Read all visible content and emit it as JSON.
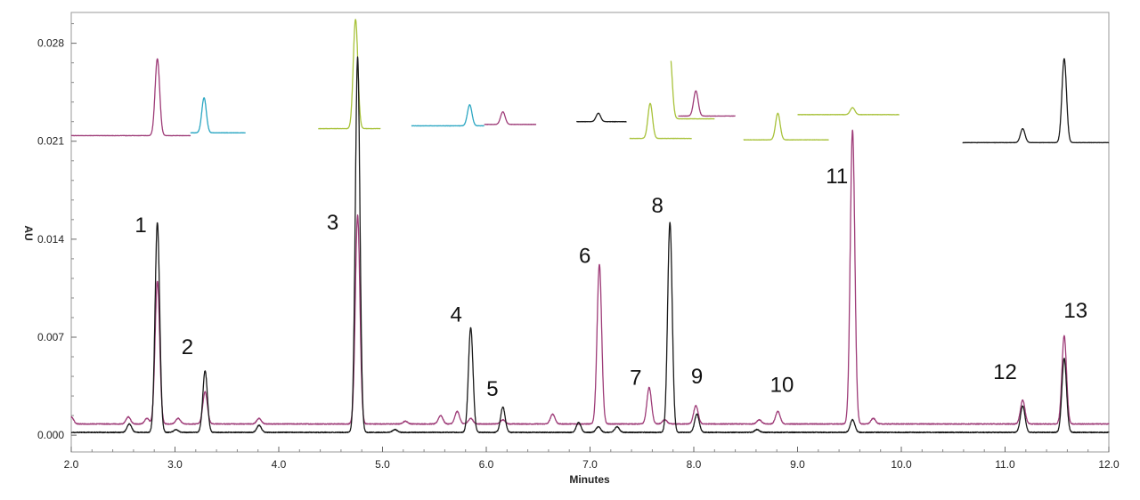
{
  "chart_data": {
    "type": "line",
    "title": "",
    "xlabel": "Minutes",
    "ylabel": "AU",
    "xlim": [
      2.0,
      12.0
    ],
    "ylim": [
      -0.0012,
      0.0302
    ],
    "x_ticks": [
      "2.0",
      "3.0",
      "4.0",
      "5.0",
      "6.0",
      "7.0",
      "8.0",
      "9.0",
      "10.0",
      "11.0",
      "12.0"
    ],
    "y_ticks": [
      "0.000",
      "0.007",
      "0.014",
      "0.021",
      "0.028"
    ],
    "grid": false,
    "colors": {
      "black": "#1a1a1a",
      "magenta": "#9e3c78",
      "teal": "#2aa6c2",
      "green": "#a8c23a"
    },
    "series": [
      {
        "color": "black",
        "baseline": 0.0002,
        "peaks": [
          {
            "t": 2.56,
            "h": 0.0006
          },
          {
            "t": 2.83,
            "h": 0.015
          },
          {
            "t": 3.01,
            "h": 0.0002
          },
          {
            "t": 3.29,
            "h": 0.0044
          },
          {
            "t": 3.81,
            "h": 0.0005
          },
          {
            "t": 4.76,
            "h": 0.0268
          },
          {
            "t": 5.12,
            "h": 0.0002
          },
          {
            "t": 5.85,
            "h": 0.0075
          },
          {
            "t": 6.16,
            "h": 0.0018
          },
          {
            "t": 6.89,
            "h": 0.0007
          },
          {
            "t": 7.08,
            "h": 0.0004
          },
          {
            "t": 7.26,
            "h": 0.0004
          },
          {
            "t": 7.77,
            "h": 0.015
          },
          {
            "t": 8.03,
            "h": 0.0013
          },
          {
            "t": 8.61,
            "h": 0.0002
          },
          {
            "t": 9.53,
            "h": 0.0009
          },
          {
            "t": 11.17,
            "h": 0.0019
          },
          {
            "t": 11.57,
            "h": 0.0053
          }
        ]
      },
      {
        "color": "magenta",
        "baseline": 0.0008,
        "peaks": [
          {
            "t": 2.0,
            "h": 0.0005
          },
          {
            "t": 2.55,
            "h": 0.0005
          },
          {
            "t": 2.73,
            "h": 0.0004
          },
          {
            "t": 2.83,
            "h": 0.0102
          },
          {
            "t": 3.03,
            "h": 0.0004
          },
          {
            "t": 3.29,
            "h": 0.0023
          },
          {
            "t": 3.81,
            "h": 0.0004
          },
          {
            "t": 4.76,
            "h": 0.0149
          },
          {
            "t": 5.22,
            "h": 0.0002
          },
          {
            "t": 5.56,
            "h": 0.0006
          },
          {
            "t": 5.72,
            "h": 0.0009
          },
          {
            "t": 5.85,
            "h": 0.0004
          },
          {
            "t": 6.16,
            "h": 0.0003
          },
          {
            "t": 6.64,
            "h": 0.0007
          },
          {
            "t": 7.09,
            "h": 0.0114
          },
          {
            "t": 7.57,
            "h": 0.0026
          },
          {
            "t": 7.72,
            "h": 0.0003
          },
          {
            "t": 8.02,
            "h": 0.0013
          },
          {
            "t": 8.63,
            "h": 0.0003
          },
          {
            "t": 8.81,
            "h": 0.0009
          },
          {
            "t": 9.53,
            "h": 0.021
          },
          {
            "t": 9.73,
            "h": 0.0004
          },
          {
            "t": 11.17,
            "h": 0.0017
          },
          {
            "t": 11.57,
            "h": 0.0063
          }
        ]
      }
    ],
    "inset_traces": [
      {
        "color": "magenta",
        "x_range": [
          2.0,
          3.15
        ],
        "baseline": 0.0214,
        "peaks": [
          {
            "t": 2.83,
            "h": 0.0055
          }
        ]
      },
      {
        "color": "teal",
        "x_range": [
          3.15,
          3.68
        ],
        "baseline": 0.0216,
        "peaks": [
          {
            "t": 3.28,
            "h": 0.0025
          }
        ]
      },
      {
        "color": "green",
        "x_range": [
          4.38,
          4.98
        ],
        "baseline": 0.0219,
        "peaks": [
          {
            "t": 4.74,
            "h": 0.0078
          }
        ]
      },
      {
        "color": "teal",
        "x_range": [
          5.28,
          5.98
        ],
        "baseline": 0.0221,
        "peaks": [
          {
            "t": 5.84,
            "h": 0.0015
          }
        ]
      },
      {
        "color": "magenta",
        "x_range": [
          5.98,
          6.48
        ],
        "baseline": 0.0222,
        "peaks": [
          {
            "t": 6.16,
            "h": 0.0009
          }
        ]
      },
      {
        "color": "black",
        "x_range": [
          6.87,
          7.35
        ],
        "baseline": 0.0224,
        "peaks": [
          {
            "t": 7.08,
            "h": 0.0006
          }
        ]
      },
      {
        "color": "green",
        "x_range": [
          7.38,
          7.98
        ],
        "baseline": 0.0212,
        "peaks": [
          {
            "t": 7.58,
            "h": 0.0025
          }
        ]
      },
      {
        "color": "green",
        "x_range": [
          7.78,
          8.2
        ],
        "baseline": 0.0226,
        "peaks": [
          {
            "t": 7.77,
            "h": 0.0046
          }
        ]
      },
      {
        "color": "magenta",
        "x_range": [
          7.85,
          8.4
        ],
        "baseline": 0.0228,
        "peaks": [
          {
            "t": 8.02,
            "h": 0.0018
          }
        ]
      },
      {
        "color": "green",
        "x_range": [
          8.48,
          9.3
        ],
        "baseline": 0.0211,
        "peaks": [
          {
            "t": 8.81,
            "h": 0.0019
          }
        ]
      },
      {
        "color": "green",
        "x_range": [
          9.0,
          9.98
        ],
        "baseline": 0.0229,
        "peaks": [
          {
            "t": 9.53,
            "h": 0.0005
          }
        ]
      },
      {
        "color": "black",
        "x_range": [
          10.59,
          12.0
        ],
        "baseline": 0.0209,
        "peaks": [
          {
            "t": 11.17,
            "h": 0.001
          },
          {
            "t": 11.57,
            "h": 0.006
          }
        ]
      }
    ],
    "peak_labels": [
      {
        "label": "1",
        "x": 2.67,
        "y": 0.0145
      },
      {
        "label": "2",
        "x": 3.12,
        "y": 0.0058
      },
      {
        "label": "3",
        "x": 4.52,
        "y": 0.0147
      },
      {
        "label": "4",
        "x": 5.71,
        "y": 0.0081
      },
      {
        "label": "5",
        "x": 6.06,
        "y": 0.0028
      },
      {
        "label": "6",
        "x": 6.95,
        "y": 0.0123
      },
      {
        "label": "7",
        "x": 7.44,
        "y": 0.0036
      },
      {
        "label": "8",
        "x": 7.65,
        "y": 0.0159
      },
      {
        "label": "9",
        "x": 8.03,
        "y": 0.0037
      },
      {
        "label": "10",
        "x": 8.85,
        "y": 0.0031
      },
      {
        "label": "11",
        "x": 9.38,
        "y": 0.018
      },
      {
        "label": "12",
        "x": 11.0,
        "y": 0.004
      },
      {
        "label": "13",
        "x": 11.68,
        "y": 0.0084
      }
    ]
  }
}
